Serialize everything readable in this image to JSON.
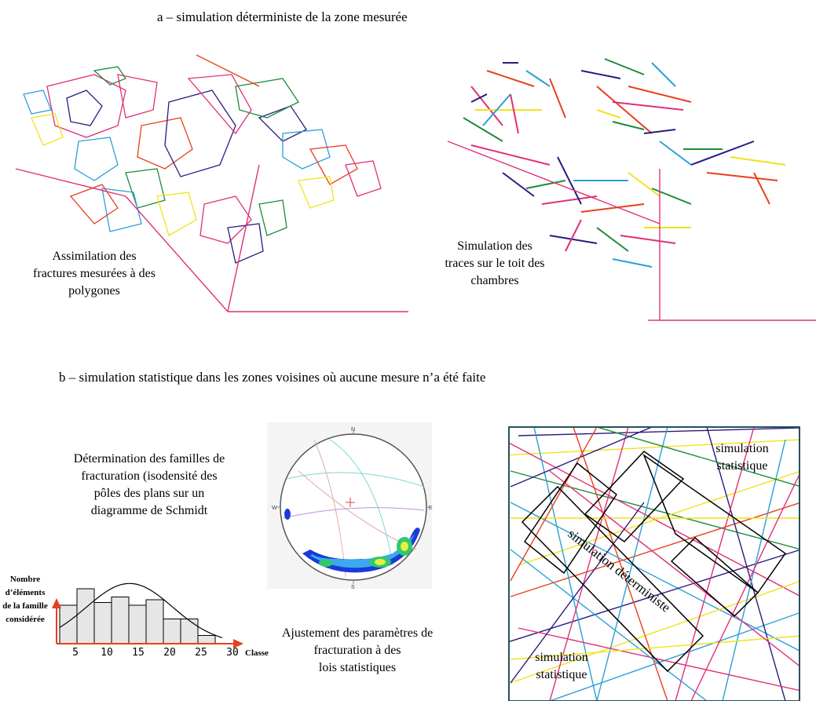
{
  "section_a": {
    "heading": "a – simulation déterministe de la zone mesurée",
    "left_caption": "Assimilation des\nfractures mesurées à des\npolygones",
    "right_caption": "Simulation des\ntraces sur le toit des\nchambres"
  },
  "section_b": {
    "heading": "b – simulation statistique dans les zones voisines où aucune mesure n’a été faite",
    "families_caption": "Détermination des familles de\nfracturation (isodensité des\npôles des plans sur un\ndiagramme de Schmidt",
    "adjust_caption": "Ajustement des paramètres de\nfracturation à des\nlois statistiques",
    "stereonet_labels": {
      "north": "N",
      "south": "S",
      "east": "E",
      "west": "W"
    },
    "sim_labels": {
      "stat_top": "simulation\nstatistique",
      "deterministic": "simulation déterministe",
      "stat_bottom": "simulation\nstatistique"
    }
  },
  "chart_data": {
    "type": "bar",
    "ylabel": "Nombre\nd’éléments\nde la famille\nconsidérée",
    "xlabel": "Classe",
    "x_ticks": [
      "5",
      "10",
      "15",
      "20",
      "25",
      "30"
    ],
    "values": [
      14,
      20,
      15,
      17,
      14,
      16,
      9,
      9,
      3
    ],
    "fit_curve": "normal",
    "colors": {
      "bars": "#e6e6e6",
      "axes": "#e8401c"
    }
  }
}
